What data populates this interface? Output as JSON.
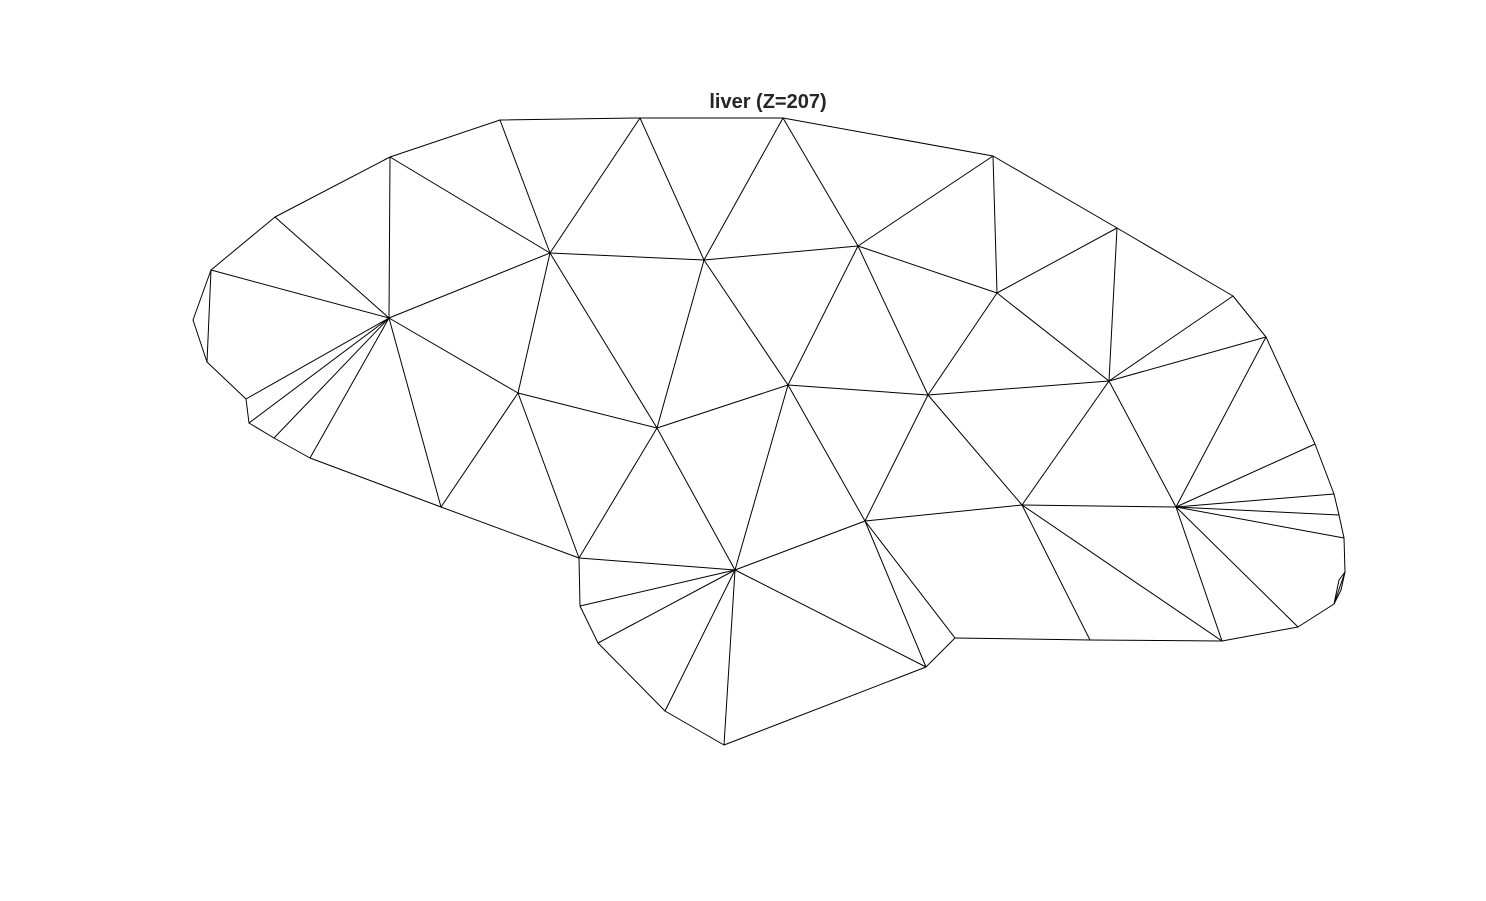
{
  "title": "liver (Z=207)",
  "colors": {
    "background": "#ffffff",
    "edge": "#000000",
    "title": "#262626"
  }
}
